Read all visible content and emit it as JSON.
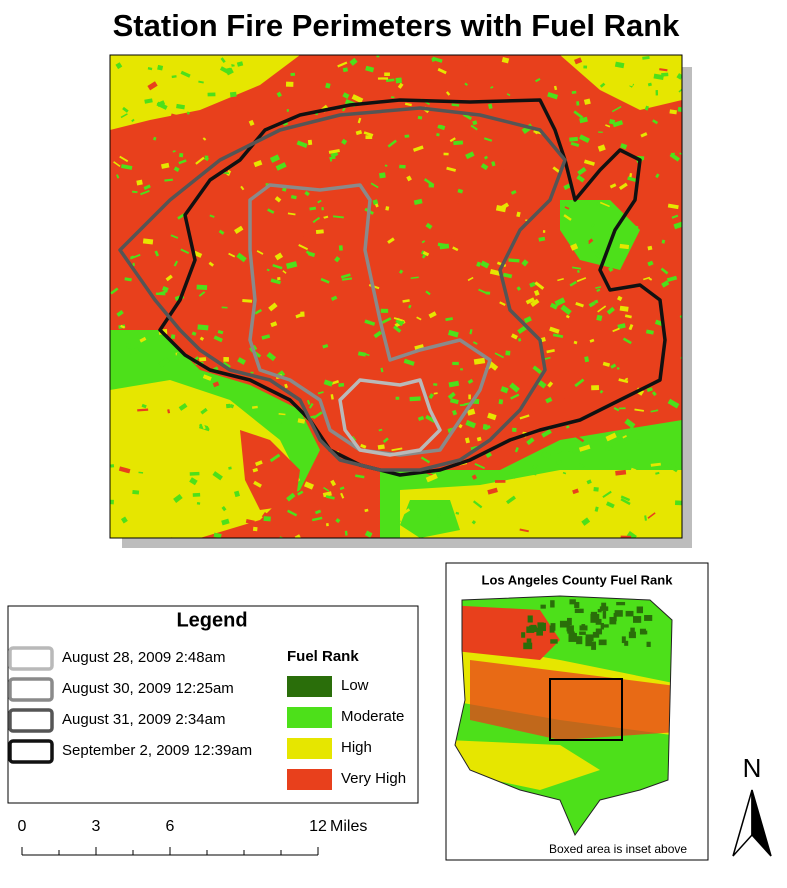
{
  "title": "Station Fire Perimeters with Fuel Rank",
  "legend": {
    "title": "Legend",
    "perimeters": [
      {
        "label": "August 28, 2009 2:48am",
        "color": "#b9b9b9"
      },
      {
        "label": "August 30, 2009 12:25am",
        "color": "#8a8a8a"
      },
      {
        "label": "August 31, 2009 2:34am",
        "color": "#555555"
      },
      {
        "label": "September 2, 2009 12:39am",
        "color": "#111111"
      }
    ],
    "fuel_rank": {
      "title": "Fuel Rank",
      "classes": [
        {
          "label": "Low",
          "color": "#2a6e0a"
        },
        {
          "label": "Moderate",
          "color": "#4de01a"
        },
        {
          "label": "High",
          "color": "#e6e600"
        },
        {
          "label": "Very High",
          "color": "#e8401c"
        }
      ]
    }
  },
  "scale_bar": {
    "ticks": [
      0,
      3,
      6,
      12
    ],
    "unit": "Miles"
  },
  "inset": {
    "title": "Los Angeles County Fuel Rank",
    "note": "Boxed area is inset above"
  },
  "north_arrow": "N"
}
